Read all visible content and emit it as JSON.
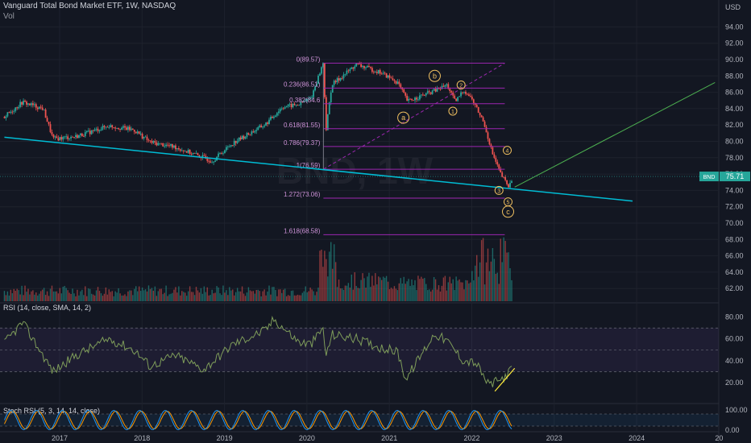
{
  "header": {
    "title": "Vanguard Total Bond Market ETF, 1W, NASDAQ",
    "vol_label": "Vol",
    "watermark": "BND, 1W"
  },
  "price_axis": {
    "currency": "USD",
    "ticks": [
      "94.00",
      "92.00",
      "90.00",
      "88.00",
      "86.00",
      "84.00",
      "82.00",
      "80.00",
      "78.00",
      "76.00",
      "74.00",
      "72.00",
      "70.00",
      "68.00",
      "66.00",
      "64.00",
      "62.00"
    ],
    "last_symbol": "BND",
    "last_price": "75.71"
  },
  "rsi_pane": {
    "label": "RSI (14, close, SMA, 14, 2)",
    "ticks": [
      "80.00",
      "60.00",
      "40.00",
      "20.00"
    ]
  },
  "stoch_pane": {
    "label": "Stoch RSI (5, 3, 14, 14, close)",
    "ticks": [
      "100.00",
      "0.00"
    ]
  },
  "time_axis": [
    "2017",
    "2018",
    "2019",
    "2020",
    "2021",
    "2022",
    "2023",
    "2024",
    "20"
  ],
  "fib_levels": [
    {
      "label": "0(89.57)",
      "price": 89.57
    },
    {
      "label": "0.236(86.51)",
      "price": 86.51
    },
    {
      "label": "0.382(84.6",
      "price": 84.6
    },
    {
      "label": "0.618(81.55)",
      "price": 81.55
    },
    {
      "label": "0.786(79.37)",
      "price": 79.37
    },
    {
      "label": "1(76.59)",
      "price": 76.59
    },
    {
      "label": "1.272(73.06)",
      "price": 73.06
    },
    {
      "label": "1.618(68.58)",
      "price": 68.58
    }
  ],
  "wave_labels": [
    "a",
    "b",
    "c",
    "1",
    "2",
    "3",
    "4",
    "5"
  ],
  "colors": {
    "background": "#131722",
    "up": "#26a69a",
    "down": "#ef5350",
    "trendline": "#00bcd4",
    "fib": "#9c27b0",
    "rsi": "#7e9c5a",
    "stoch_k": "#2196f3",
    "stoch_d": "#ff9800",
    "wave": "#f0c060",
    "projection": "#4caf50"
  },
  "chart_data": {
    "type": "candlestick",
    "title": "Vanguard Total Bond Market ETF, 1W, NASDAQ",
    "interval": "1W",
    "ylabel": "USD",
    "ylim": [
      60.5,
      95.5
    ],
    "x_range": [
      "2016-05",
      "2024-12"
    ],
    "price_path": [
      {
        "t": 2016.33,
        "p": 83.0
      },
      {
        "t": 2016.55,
        "p": 84.8
      },
      {
        "t": 2016.8,
        "p": 84.0
      },
      {
        "t": 2016.92,
        "p": 80.3
      },
      {
        "t": 2017.2,
        "p": 80.6
      },
      {
        "t": 2017.6,
        "p": 81.9
      },
      {
        "t": 2017.9,
        "p": 81.4
      },
      {
        "t": 2018.1,
        "p": 79.9
      },
      {
        "t": 2018.4,
        "p": 79.3
      },
      {
        "t": 2018.75,
        "p": 78.0
      },
      {
        "t": 2018.85,
        "p": 77.6
      },
      {
        "t": 2019.1,
        "p": 79.8
      },
      {
        "t": 2019.5,
        "p": 82.1
      },
      {
        "t": 2019.7,
        "p": 84.2
      },
      {
        "t": 2019.9,
        "p": 84.5
      },
      {
        "t": 2020.05,
        "p": 85.3
      },
      {
        "t": 2020.2,
        "p": 89.7
      },
      {
        "t": 2020.23,
        "p": 81.2
      },
      {
        "t": 2020.3,
        "p": 86.9
      },
      {
        "t": 2020.6,
        "p": 89.4
      },
      {
        "t": 2020.9,
        "p": 88.4
      },
      {
        "t": 2021.1,
        "p": 87.2
      },
      {
        "t": 2021.22,
        "p": 84.9
      },
      {
        "t": 2021.55,
        "p": 86.2
      },
      {
        "t": 2021.7,
        "p": 86.9
      },
      {
        "t": 2021.8,
        "p": 84.8
      },
      {
        "t": 2021.9,
        "p": 86.3
      },
      {
        "t": 2022.0,
        "p": 85.2
      },
      {
        "t": 2022.15,
        "p": 82.2
      },
      {
        "t": 2022.25,
        "p": 78.5
      },
      {
        "t": 2022.35,
        "p": 76.0
      },
      {
        "t": 2022.45,
        "p": 74.4
      },
      {
        "t": 2022.5,
        "p": 75.7
      }
    ],
    "volume": {
      "baseline": "low",
      "spike_2020": "high",
      "spike_2022": "high"
    },
    "rsi": {
      "ylim": [
        0,
        90
      ],
      "bands": [
        30,
        50,
        70
      ],
      "path": [
        {
          "t": 2016.33,
          "v": 56
        },
        {
          "t": 2016.55,
          "v": 75
        },
        {
          "t": 2016.92,
          "v": 30
        },
        {
          "t": 2017.2,
          "v": 45
        },
        {
          "t": 2017.6,
          "v": 60
        },
        {
          "t": 2017.9,
          "v": 50
        },
        {
          "t": 2018.1,
          "v": 35
        },
        {
          "t": 2018.4,
          "v": 45
        },
        {
          "t": 2018.75,
          "v": 32
        },
        {
          "t": 2019.1,
          "v": 55
        },
        {
          "t": 2019.5,
          "v": 68
        },
        {
          "t": 2019.6,
          "v": 78
        },
        {
          "t": 2019.9,
          "v": 57
        },
        {
          "t": 2020.05,
          "v": 55
        },
        {
          "t": 2020.2,
          "v": 70
        },
        {
          "t": 2020.23,
          "v": 42
        },
        {
          "t": 2020.3,
          "v": 64
        },
        {
          "t": 2020.6,
          "v": 60
        },
        {
          "t": 2020.9,
          "v": 52
        },
        {
          "t": 2021.1,
          "v": 48
        },
        {
          "t": 2021.2,
          "v": 23
        },
        {
          "t": 2021.55,
          "v": 65
        },
        {
          "t": 2021.7,
          "v": 58
        },
        {
          "t": 2021.9,
          "v": 40
        },
        {
          "t": 2022.05,
          "v": 38
        },
        {
          "t": 2022.2,
          "v": 18
        },
        {
          "t": 2022.35,
          "v": 22
        },
        {
          "t": 2022.5,
          "v": 33
        }
      ],
      "divergence": [
        {
          "t": 2022.28,
          "v": 12
        },
        {
          "t": 2022.52,
          "v": 33
        }
      ]
    },
    "stoch_rsi": {
      "ylim": [
        0,
        100
      ],
      "bands": [
        20,
        80
      ],
      "cycles_per_year": 3.2
    },
    "trendline": [
      {
        "t": 2016.33,
        "p": 80.5
      },
      {
        "t": 2023.95,
        "p": 72.7
      }
    ],
    "projection": [
      {
        "t": 2022.52,
        "p": 74.4
      },
      {
        "t": 2024.95,
        "p": 87.2
      }
    ],
    "fib_anchor": {
      "from": {
        "t": 2020.2,
        "p": 76.59
      },
      "to": {
        "t": 2022.4,
        "p": 89.57
      }
    },
    "waves": [
      {
        "label": "a",
        "t": 2021.17,
        "p": 82.9
      },
      {
        "label": "b",
        "t": 2021.55,
        "p": 88.0
      },
      {
        "label": "1",
        "t": 2021.77,
        "p": 83.7
      },
      {
        "label": "2",
        "t": 2021.87,
        "p": 86.9
      },
      {
        "label": "3",
        "t": 2022.33,
        "p": 74.0
      },
      {
        "label": "4",
        "t": 2022.43,
        "p": 78.9
      },
      {
        "label": "5",
        "t": 2022.44,
        "p": 72.6
      },
      {
        "label": "c",
        "t": 2022.44,
        "p": 71.4
      }
    ]
  }
}
